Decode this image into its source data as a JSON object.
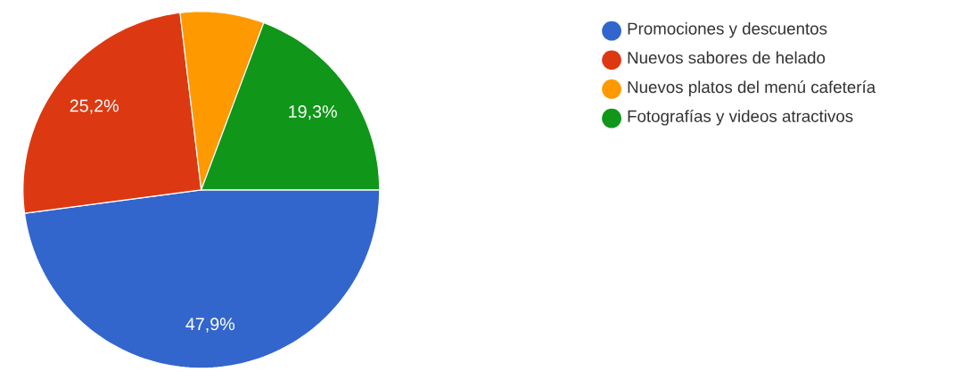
{
  "chart_data": {
    "type": "pie",
    "categories": [
      "Promociones y descuentos",
      "Nuevos sabores de helado",
      "Nuevos platos del menú cafetería",
      "Fotografías y videos atractivos"
    ],
    "values": [
      47.9,
      25.2,
      7.6,
      19.3
    ],
    "colors": [
      "#3366cc",
      "#dc3912",
      "#ff9900",
      "#109618"
    ],
    "value_labels": [
      "47,9%",
      "25,2%",
      null,
      "19,3%"
    ],
    "legend": "right"
  }
}
